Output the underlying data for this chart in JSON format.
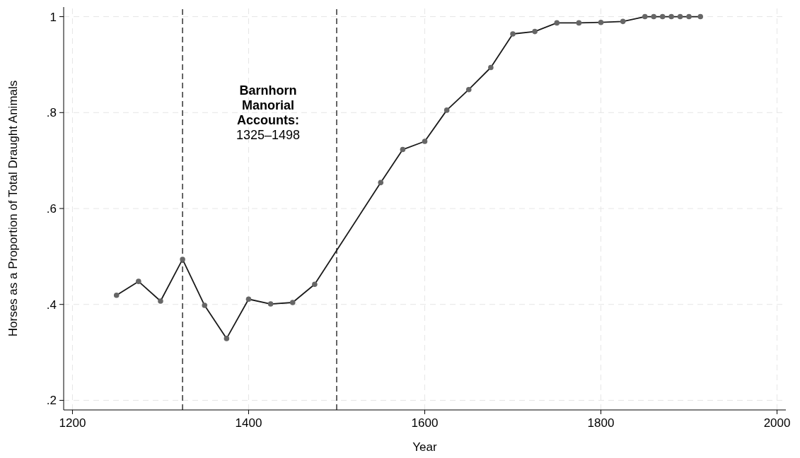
{
  "chart_data": {
    "type": "line",
    "xlabel": "Year",
    "ylabel": "Horses as a Proportion of Total Draught Animals",
    "x": [
      1250,
      1275,
      1300,
      1325,
      1350,
      1375,
      1400,
      1425,
      1450,
      1475,
      1550,
      1575,
      1600,
      1625,
      1650,
      1675,
      1700,
      1725,
      1750,
      1775,
      1800,
      1825,
      1850,
      1860,
      1870,
      1880,
      1890,
      1900,
      1913
    ],
    "series": [
      {
        "color": "#1a1a1a",
        "values": [
          0.419,
          0.448,
          0.407,
          0.494,
          0.398,
          0.329,
          0.411,
          0.401,
          0.404,
          0.442,
          0.654,
          0.723,
          0.74,
          0.805,
          0.848,
          0.894,
          0.964,
          0.969,
          0.987,
          0.987,
          0.988,
          0.99,
          1,
          1,
          1,
          1,
          1,
          1,
          1
        ]
      }
    ],
    "marker": "circle",
    "line_style": "solid",
    "grid": true,
    "xlim": [
      1190,
      2010
    ],
    "xticks": [
      1200,
      1400,
      1600,
      1800,
      2000
    ],
    "ylim": [
      0.18,
      1.02
    ],
    "yticks": [
      {
        "value": 0.2,
        "label": ".2"
      },
      {
        "value": 0.4,
        "label": ".4"
      },
      {
        "value": 0.6,
        "label": ".6"
      },
      {
        "value": 0.8,
        "label": ".8"
      },
      1
    ],
    "ref_lines": [
      {
        "axis": "x",
        "value": 1325,
        "line_style": "dashed"
      },
      {
        "axis": "x",
        "value": 1500,
        "line_style": "dashed"
      }
    ],
    "annotations": [
      "Barnhorn\nManorial\nAccounts:\n1325–1498"
    ]
  }
}
